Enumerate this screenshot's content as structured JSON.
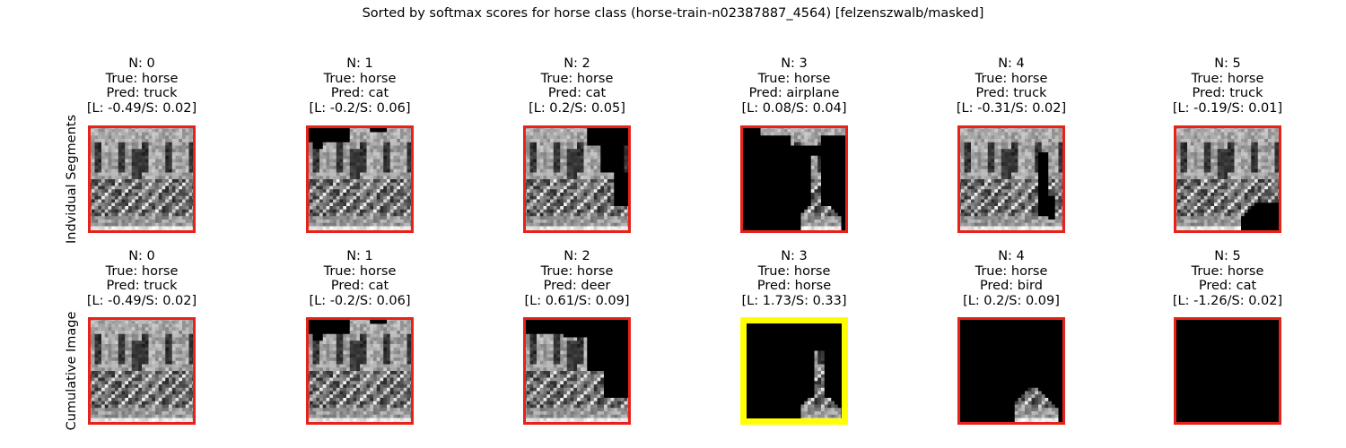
{
  "figure": {
    "suptitle": "Sorted by softmax scores for horse class (horse-train-n02387887_4564) [felzenszwalb/masked]"
  },
  "rows": [
    {
      "label": "Indvidual Segments",
      "panels": [
        {
          "title": "N: 0",
          "true": "True: horse",
          "pred": "Pred: truck",
          "scores": "[L: -0.49/S: 0.02]",
          "frame_color": "#e8221a",
          "content": "full"
        },
        {
          "title": "N: 1",
          "true": "True: horse",
          "pred": "Pred: cat",
          "scores": "[L: -0.2/S: 0.06]",
          "frame_color": "#e8221a",
          "content": "top-left-masked"
        },
        {
          "title": "N: 2",
          "true": "True: horse",
          "pred": "Pred: cat",
          "scores": "[L: 0.2/S: 0.05]",
          "frame_color": "#e8221a",
          "content": "top-right-masked"
        },
        {
          "title": "N: 3",
          "true": "True: horse",
          "pred": "Pred: airplane",
          "scores": "[L: 0.08/S: 0.04]",
          "frame_color": "#e8221a",
          "content": "mostly-masked"
        },
        {
          "title": "N: 4",
          "true": "True: horse",
          "pred": "Pred: truck",
          "scores": "[L: -0.31/S: 0.02]",
          "frame_color": "#e8221a",
          "content": "right-strip-masked"
        },
        {
          "title": "N: 5",
          "true": "True: horse",
          "pred": "Pred: truck",
          "scores": "[L: -0.19/S: 0.01]",
          "frame_color": "#e8221a",
          "content": "bottom-right-masked"
        }
      ]
    },
    {
      "label": "Cumulative Image",
      "panels": [
        {
          "title": "N: 0",
          "true": "True: horse",
          "pred": "Pred: truck",
          "scores": "[L: -0.49/S: 0.02]",
          "frame_color": "#e8221a",
          "content": "full"
        },
        {
          "title": "N: 1",
          "true": "True: horse",
          "pred": "Pred: cat",
          "scores": "[L: -0.2/S: 0.06]",
          "frame_color": "#e8221a",
          "content": "top-left-masked"
        },
        {
          "title": "N: 2",
          "true": "True: horse",
          "pred": "Pred: deer",
          "scores": "[L: 0.61/S: 0.09]",
          "frame_color": "#e8221a",
          "content": "cumulative-2"
        },
        {
          "title": "N: 3",
          "true": "True: horse",
          "pred": "Pred: horse",
          "scores": "[L: 1.73/S: 0.33]",
          "frame_color": "#ffff00",
          "content": "cumulative-3"
        },
        {
          "title": "N: 4",
          "true": "True: horse",
          "pred": "Pred: bird",
          "scores": "[L: 0.2/S: 0.09]",
          "frame_color": "#e8221a",
          "content": "cumulative-4"
        },
        {
          "title": "N: 5",
          "true": "True: horse",
          "pred": "Pred: cat",
          "scores": "[L: -1.26/S: 0.02]",
          "frame_color": "#e8221a",
          "content": "all-masked"
        }
      ]
    }
  ]
}
